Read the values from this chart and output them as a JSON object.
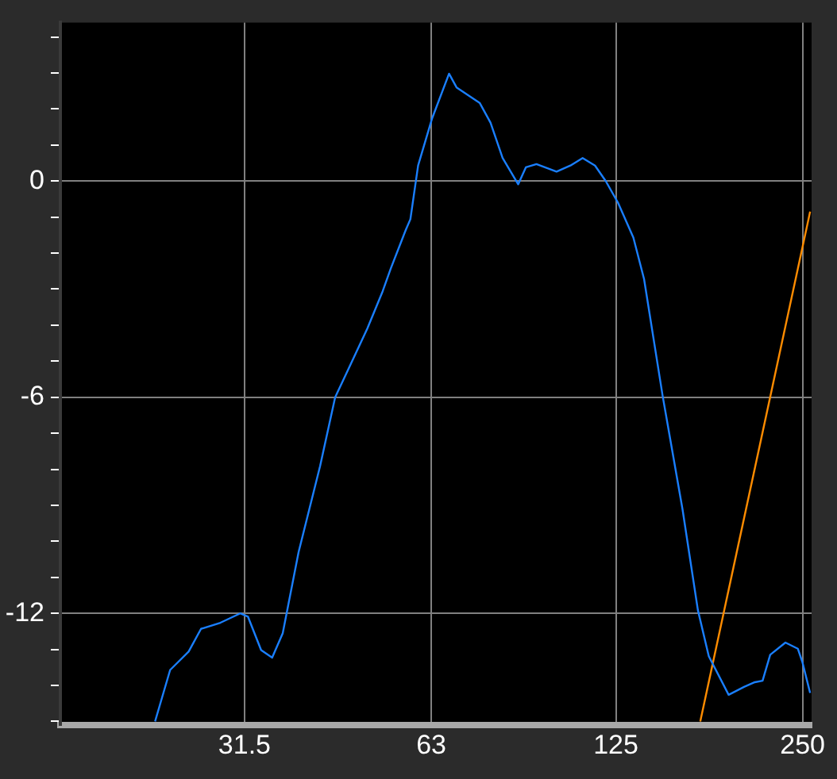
{
  "chart_data": {
    "type": "line",
    "log": "x",
    "grid": true,
    "legend": false,
    "marker": "none",
    "line_style": "solid",
    "xlim": [
      15.9,
      258.5
    ],
    "xticks": [
      31.5,
      63,
      125,
      250
    ],
    "ylim": [
      -15.1,
      4.4
    ],
    "yticks": [
      {
        "value": -15,
        "label": null
      },
      {
        "value": -14,
        "label": null
      },
      {
        "value": -13,
        "label": null
      },
      -12,
      {
        "value": -11,
        "label": null
      },
      {
        "value": -10,
        "label": null
      },
      {
        "value": -9,
        "label": null
      },
      {
        "value": -8,
        "label": null
      },
      {
        "value": -7,
        "label": null
      },
      -6,
      {
        "value": -5,
        "label": null
      },
      {
        "value": -4,
        "label": null
      },
      {
        "value": -3,
        "label": null
      },
      {
        "value": -2,
        "label": null
      },
      {
        "value": -1,
        "label": null
      },
      0,
      {
        "value": 1,
        "label": null
      },
      {
        "value": 2,
        "label": null
      },
      {
        "value": 3,
        "label": null
      },
      {
        "value": 4,
        "label": null
      }
    ],
    "series": [
      {
        "type": "line",
        "color": "#1a7fff",
        "x": [
          22.6,
          23.0,
          23.9,
          25.6,
          26.8,
          28.8,
          31.0,
          31.9,
          33.5,
          34.9,
          36.3,
          38.5,
          41.7,
          44.1,
          46.4,
          49.7,
          52.6,
          54.2,
          57.3,
          58.3,
          60.0,
          63.2,
          67.3,
          69.2,
          75.4,
          78.5,
          82.1,
          87.0,
          89.5,
          93.1,
          100.3,
          105.6,
          110.5,
          115.7,
          120.4,
          126,
          133.4,
          138.8,
          148.7,
          160.1,
          169.5,
          176.5,
          190.0,
          201.2,
          209.4,
          215.5,
          221.7,
          234.6,
          245.6,
          249.9,
          257.1
        ],
        "values": [
          -15.0,
          -14.55,
          -13.57,
          -13.06,
          -12.43,
          -12.26,
          -12.0,
          -12.09,
          -13.02,
          -13.23,
          -12.55,
          -10.3,
          -7.91,
          -6.0,
          -5.19,
          -4.09,
          -3.06,
          -2.43,
          -1.36,
          -1.06,
          0.43,
          1.74,
          2.98,
          2.6,
          2.17,
          1.62,
          0.64,
          -0.09,
          0.38,
          0.47,
          0.26,
          0.43,
          0.64,
          0.43,
          0,
          -0.6,
          -1.57,
          -2.72,
          -5.96,
          -9.11,
          -11.91,
          -13.19,
          -14.26,
          -14.04,
          -13.91,
          -13.87,
          -13.15,
          -12.81,
          -12.98,
          -13.36,
          -14.21
        ]
      },
      {
        "type": "line",
        "color": "#ff8c00",
        "x": [
          171,
          257.1
        ],
        "values": [
          -15.0,
          -0.85
        ]
      }
    ]
  }
}
